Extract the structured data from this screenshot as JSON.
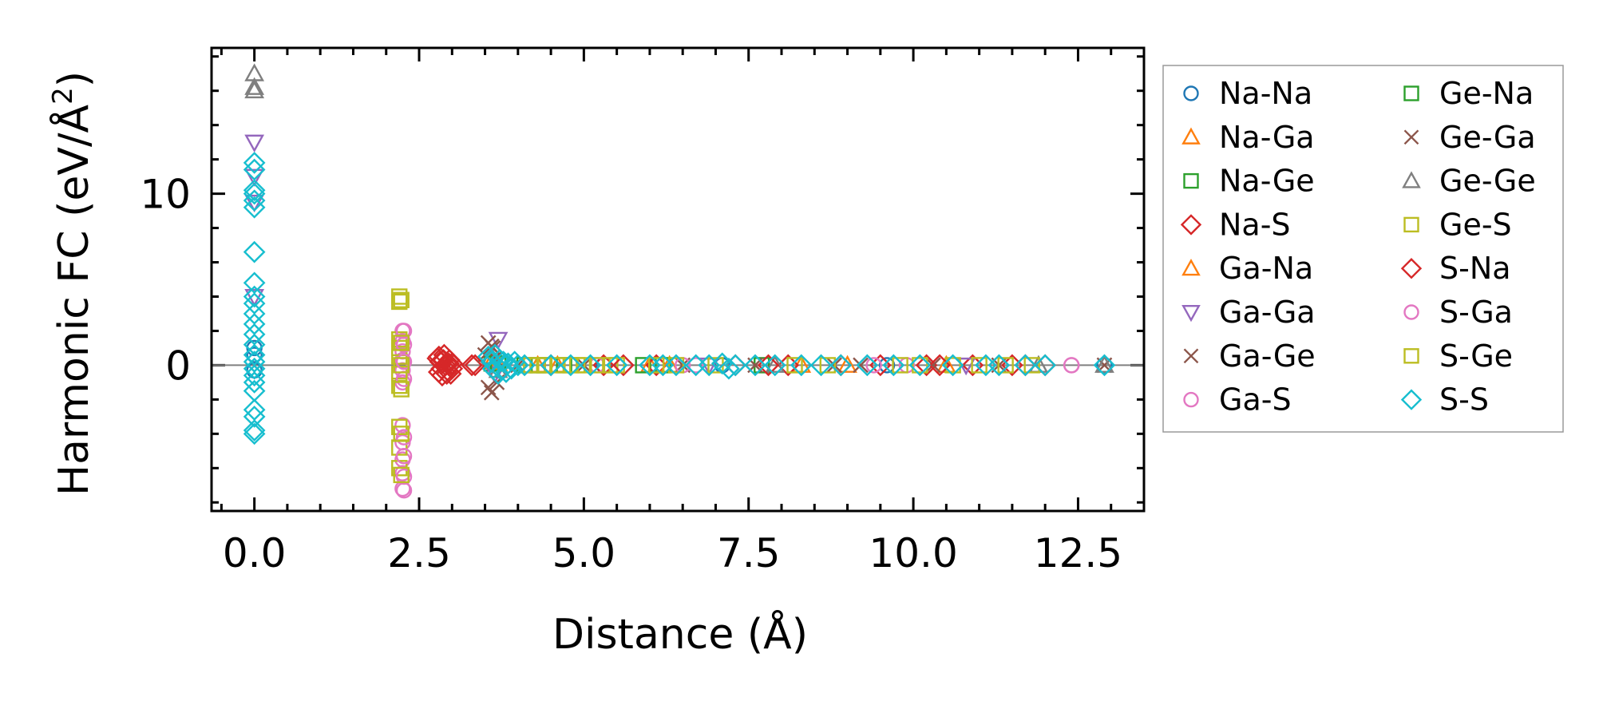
{
  "chart_data": {
    "type": "scatter",
    "title": "",
    "xlabel": "Distance (Å)",
    "ylabel_main": "Harmonic FC (eV/Å",
    "ylabel_sup": "2",
    "ylabel_close": ")",
    "xlim": [
      -0.65,
      13.5
    ],
    "ylim": [
      -8.5,
      18.5
    ],
    "xticks": [
      0.0,
      2.5,
      5.0,
      7.5,
      10.0,
      12.5
    ],
    "xtick_labels": [
      "0.0",
      "2.5",
      "5.0",
      "7.5",
      "10.0",
      "12.5"
    ],
    "yticks": [
      0,
      10
    ],
    "ytick_labels": [
      "0",
      "10"
    ],
    "zero_line": true,
    "grid": false,
    "legend_position": "right-outside",
    "series": [
      {
        "name": "Na-Na",
        "marker": "circle",
        "color": "#1f77b4",
        "points": [
          [
            0,
            0.6
          ],
          [
            0,
            1.0
          ],
          [
            0,
            -0.3
          ],
          [
            5.3,
            0
          ],
          [
            7.1,
            0
          ],
          [
            9.6,
            0
          ],
          [
            12.9,
            0
          ]
        ]
      },
      {
        "name": "Na-Ga",
        "marker": "triangle-up",
        "color": "#ff7f0e",
        "points": [
          [
            3.6,
            0.2
          ],
          [
            4.3,
            0
          ],
          [
            6.0,
            0
          ],
          [
            8.3,
            0
          ],
          [
            10.5,
            0
          ]
        ]
      },
      {
        "name": "Na-Ge",
        "marker": "square",
        "color": "#2ca02c",
        "points": [
          [
            3.6,
            0.1
          ],
          [
            4.1,
            0
          ],
          [
            4.4,
            0
          ],
          [
            5.9,
            0
          ],
          [
            7.7,
            0
          ]
        ]
      },
      {
        "name": "Na-S",
        "marker": "diamond",
        "color": "#d62728",
        "points": [
          [
            2.78,
            0.4
          ],
          [
            2.8,
            -0.4
          ],
          [
            2.82,
            0.2
          ],
          [
            2.85,
            -0.6
          ],
          [
            2.88,
            0.6
          ],
          [
            2.9,
            0
          ],
          [
            2.93,
            -0.3
          ],
          [
            2.96,
            0.3
          ],
          [
            2.98,
            -0.5
          ],
          [
            3.0,
            0.1
          ],
          [
            3.3,
            0
          ],
          [
            4.5,
            0
          ],
          [
            5.3,
            0
          ],
          [
            6.1,
            0
          ],
          [
            7.3,
            0
          ],
          [
            8.1,
            0
          ],
          [
            8.9,
            0
          ],
          [
            9.5,
            0
          ],
          [
            10.2,
            0
          ],
          [
            10.9,
            0
          ],
          [
            11.5,
            0
          ],
          [
            12.0,
            0
          ]
        ]
      },
      {
        "name": "Ga-Na",
        "marker": "triangle-up",
        "color": "#ff7f0e",
        "points": [
          [
            3.7,
            0.1
          ],
          [
            4.6,
            0
          ],
          [
            6.3,
            0
          ],
          [
            9.0,
            0
          ]
        ]
      },
      {
        "name": "Ga-Ga",
        "marker": "triangle-down",
        "color": "#9467bd",
        "points": [
          [
            0,
            13.0
          ],
          [
            0,
            11.0
          ],
          [
            0,
            9.5
          ],
          [
            0,
            4.0
          ],
          [
            3.7,
            1.5
          ],
          [
            3.65,
            -0.5
          ],
          [
            6.9,
            0
          ],
          [
            10.8,
            0
          ]
        ]
      },
      {
        "name": "Ga-Ge",
        "marker": "x",
        "color": "#8c564b",
        "points": [
          [
            3.55,
            1.3
          ],
          [
            3.6,
            -1.6
          ],
          [
            3.5,
            0.6
          ],
          [
            3.68,
            -1.0
          ],
          [
            3.62,
            1.0
          ],
          [
            4.0,
            0
          ],
          [
            6.5,
            0
          ],
          [
            8.8,
            0
          ],
          [
            10.3,
            0
          ],
          [
            12.9,
            0
          ]
        ]
      },
      {
        "name": "Ga-S",
        "marker": "circle",
        "color": "#e377c2",
        "points": [
          [
            2.25,
            2.0
          ],
          [
            2.25,
            1.4
          ],
          [
            2.25,
            0.8
          ],
          [
            2.25,
            0.3
          ],
          [
            2.25,
            -0.3
          ],
          [
            2.25,
            -1.0
          ],
          [
            2.25,
            -3.5
          ],
          [
            2.25,
            -4.5
          ],
          [
            2.25,
            -5.5
          ],
          [
            2.25,
            -6.3
          ],
          [
            2.25,
            -7.2
          ],
          [
            5.2,
            0
          ],
          [
            6.7,
            0
          ],
          [
            9.9,
            0
          ],
          [
            12.4,
            0
          ]
        ]
      },
      {
        "name": "Ge-Na",
        "marker": "square",
        "color": "#2ca02c",
        "points": [
          [
            3.7,
            0.1
          ],
          [
            4.3,
            0
          ],
          [
            4.7,
            0
          ],
          [
            6.2,
            0
          ]
        ]
      },
      {
        "name": "Ge-Ga",
        "marker": "x",
        "color": "#8c564b",
        "points": [
          [
            3.6,
            1.1
          ],
          [
            3.55,
            -1.3
          ],
          [
            3.65,
            0.4
          ],
          [
            5.0,
            0
          ],
          [
            7.6,
            0
          ],
          [
            9.2,
            0
          ],
          [
            11.3,
            0
          ]
        ]
      },
      {
        "name": "Ge-Ge",
        "marker": "triangle-up",
        "color": "#7f7f7f",
        "points": [
          [
            0,
            17.0
          ],
          [
            0,
            16.2
          ],
          [
            0,
            16.0
          ],
          [
            3.6,
            0.5
          ],
          [
            3.7,
            -0.3
          ],
          [
            7.9,
            0
          ],
          [
            11.9,
            0
          ],
          [
            12.9,
            0
          ]
        ]
      },
      {
        "name": "Ge-S",
        "marker": "square",
        "color": "#bcbd22",
        "points": [
          [
            2.2,
            4.0
          ],
          [
            2.2,
            3.7
          ],
          [
            2.2,
            1.5
          ],
          [
            2.2,
            1.0
          ],
          [
            2.2,
            0.5
          ],
          [
            2.2,
            -0.5
          ],
          [
            2.2,
            -1.2
          ],
          [
            2.2,
            -3.6
          ],
          [
            2.2,
            -4.8
          ],
          [
            2.2,
            -6.0
          ],
          [
            4.2,
            0
          ],
          [
            4.4,
            0
          ],
          [
            4.6,
            0
          ],
          [
            4.8,
            0
          ],
          [
            5.0,
            0
          ],
          [
            5.2,
            0
          ],
          [
            5.4,
            0
          ],
          [
            6.1,
            0
          ],
          [
            7.0,
            0
          ],
          [
            8.7,
            0
          ],
          [
            9.8,
            0
          ],
          [
            10.6,
            0
          ],
          [
            11.4,
            0
          ],
          [
            11.8,
            0
          ]
        ]
      },
      {
        "name": "S-Na",
        "marker": "diamond",
        "color": "#d62728",
        "points": [
          [
            2.8,
            0.5
          ],
          [
            2.84,
            -0.2
          ],
          [
            2.87,
            0.3
          ],
          [
            2.92,
            -0.5
          ],
          [
            2.95,
            0.1
          ],
          [
            3.0,
            -0.2
          ],
          [
            3.35,
            0
          ],
          [
            5.6,
            0
          ],
          [
            7.8,
            0
          ],
          [
            10.4,
            0
          ],
          [
            11.7,
            0
          ]
        ]
      },
      {
        "name": "S-Ga",
        "marker": "circle",
        "color": "#e377c2",
        "points": [
          [
            2.27,
            2.0
          ],
          [
            2.27,
            1.2
          ],
          [
            2.27,
            0.2
          ],
          [
            2.27,
            -0.8
          ],
          [
            2.27,
            -4.2
          ],
          [
            2.27,
            -5.3
          ],
          [
            2.27,
            -6.5
          ],
          [
            2.27,
            -7.3
          ],
          [
            6.5,
            0
          ],
          [
            9.4,
            0
          ],
          [
            12.4,
            0
          ]
        ]
      },
      {
        "name": "S-Ge",
        "marker": "square",
        "color": "#bcbd22",
        "points": [
          [
            2.23,
            3.8
          ],
          [
            2.23,
            1.3
          ],
          [
            2.23,
            0.0
          ],
          [
            2.23,
            -1.4
          ],
          [
            2.23,
            -4.0
          ],
          [
            2.23,
            -6.4
          ],
          [
            4.3,
            0
          ],
          [
            4.9,
            0
          ],
          [
            5.5,
            0
          ],
          [
            6.4,
            0
          ],
          [
            8.2,
            0
          ],
          [
            10.1,
            0
          ],
          [
            11.0,
            0
          ]
        ]
      },
      {
        "name": "S-S",
        "marker": "diamond",
        "color": "#17becf",
        "points": [
          [
            0,
            11.8
          ],
          [
            0,
            11.4
          ],
          [
            0,
            10.2
          ],
          [
            0,
            10.0
          ],
          [
            0,
            9.6
          ],
          [
            0,
            9.2
          ],
          [
            0,
            6.6
          ],
          [
            0,
            4.8
          ],
          [
            0,
            4.0
          ],
          [
            0,
            3.6
          ],
          [
            0,
            3.0
          ],
          [
            0,
            2.4
          ],
          [
            0,
            1.8
          ],
          [
            0,
            1.2
          ],
          [
            0,
            0.6
          ],
          [
            0,
            0.2
          ],
          [
            0,
            -0.2
          ],
          [
            0,
            -0.6
          ],
          [
            0,
            -1.0
          ],
          [
            0,
            -1.5
          ],
          [
            0,
            -2.6
          ],
          [
            0,
            -3.0
          ],
          [
            0,
            -3.8
          ],
          [
            0,
            -4.0
          ],
          [
            3.55,
            0.5
          ],
          [
            3.6,
            0.2
          ],
          [
            3.62,
            -0.2
          ],
          [
            3.65,
            0.6
          ],
          [
            3.7,
            -0.5
          ],
          [
            3.72,
            0.3
          ],
          [
            3.75,
            -0.3
          ],
          [
            3.78,
            0.2
          ],
          [
            3.82,
            -0.4
          ],
          [
            3.85,
            0.1
          ],
          [
            3.9,
            -0.2
          ],
          [
            3.95,
            0.2
          ],
          [
            4.0,
            0
          ],
          [
            4.1,
            0
          ],
          [
            4.5,
            0
          ],
          [
            4.8,
            0
          ],
          [
            5.1,
            0
          ],
          [
            5.5,
            0
          ],
          [
            6.0,
            0
          ],
          [
            6.2,
            0
          ],
          [
            6.4,
            0
          ],
          [
            6.7,
            0
          ],
          [
            6.9,
            0
          ],
          [
            7.1,
            0.1
          ],
          [
            7.2,
            -0.2
          ],
          [
            7.3,
            0
          ],
          [
            7.6,
            0
          ],
          [
            7.9,
            0
          ],
          [
            8.3,
            0
          ],
          [
            8.6,
            0
          ],
          [
            8.9,
            0
          ],
          [
            9.3,
            0
          ],
          [
            9.7,
            0
          ],
          [
            10.1,
            0
          ],
          [
            10.6,
            0
          ],
          [
            11.1,
            0
          ],
          [
            11.3,
            0
          ],
          [
            11.7,
            0
          ],
          [
            12.0,
            0
          ],
          [
            12.9,
            0
          ]
        ]
      }
    ]
  }
}
